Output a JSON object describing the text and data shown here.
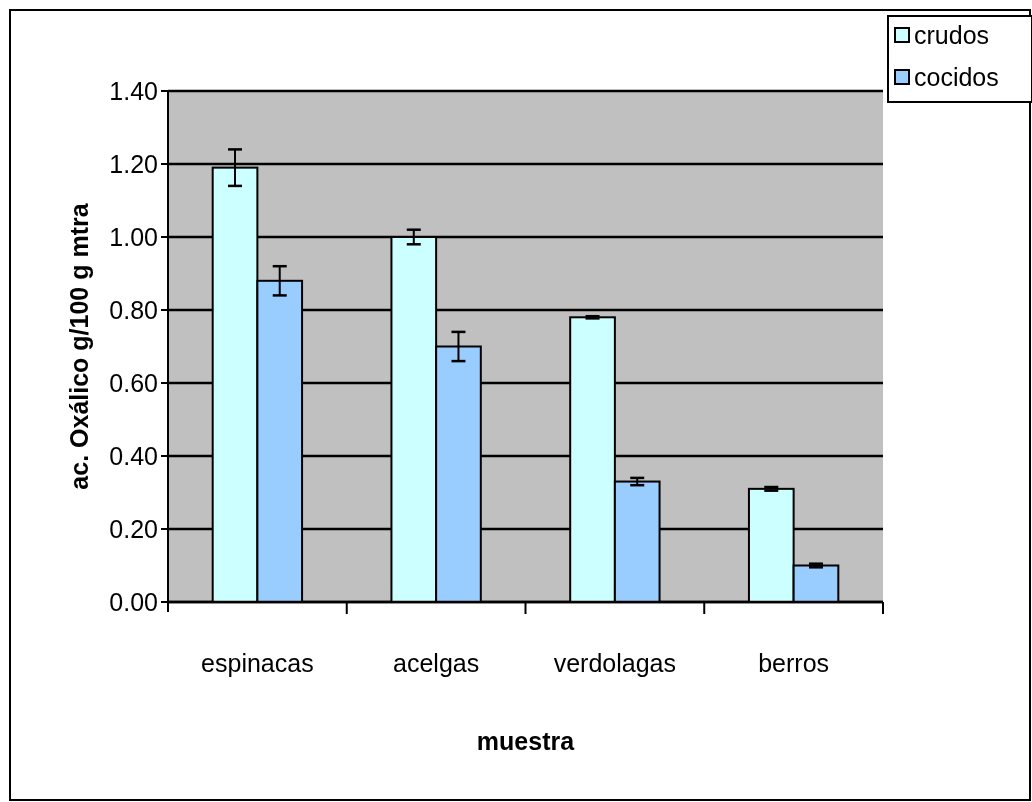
{
  "chart_data": {
    "type": "bar",
    "xlabel": "muestra",
    "ylabel": "ac. Oxálico g/100 g mtra",
    "categories": [
      "espinacas",
      "acelgas",
      "verdolagas",
      "berros"
    ],
    "series": [
      {
        "name": "crudos",
        "color": "#ccffff",
        "values": [
          1.19,
          1.0,
          0.78,
          0.31
        ],
        "errors": [
          0.05,
          0.02,
          0.003,
          0.005
        ]
      },
      {
        "name": "cocidos",
        "color": "#99ccff",
        "values": [
          0.88,
          0.7,
          0.33,
          0.1
        ],
        "errors": [
          0.04,
          0.04,
          0.01,
          0.005
        ]
      }
    ],
    "ylim": [
      0,
      1.4
    ],
    "yticks": [
      {
        "value": 0,
        "label": "0.00"
      },
      {
        "value": 0.2,
        "label": "0.20"
      },
      {
        "value": 0.4,
        "label": "0.40"
      },
      {
        "value": 0.6,
        "label": "0.60"
      },
      {
        "value": 0.8,
        "label": "0.80"
      },
      {
        "value": 1,
        "label": "1.00"
      },
      {
        "value": 1.2,
        "label": "1.20"
      },
      {
        "value": 1.4,
        "label": "1.40"
      }
    ],
    "grid": "y",
    "legend": "top right"
  }
}
